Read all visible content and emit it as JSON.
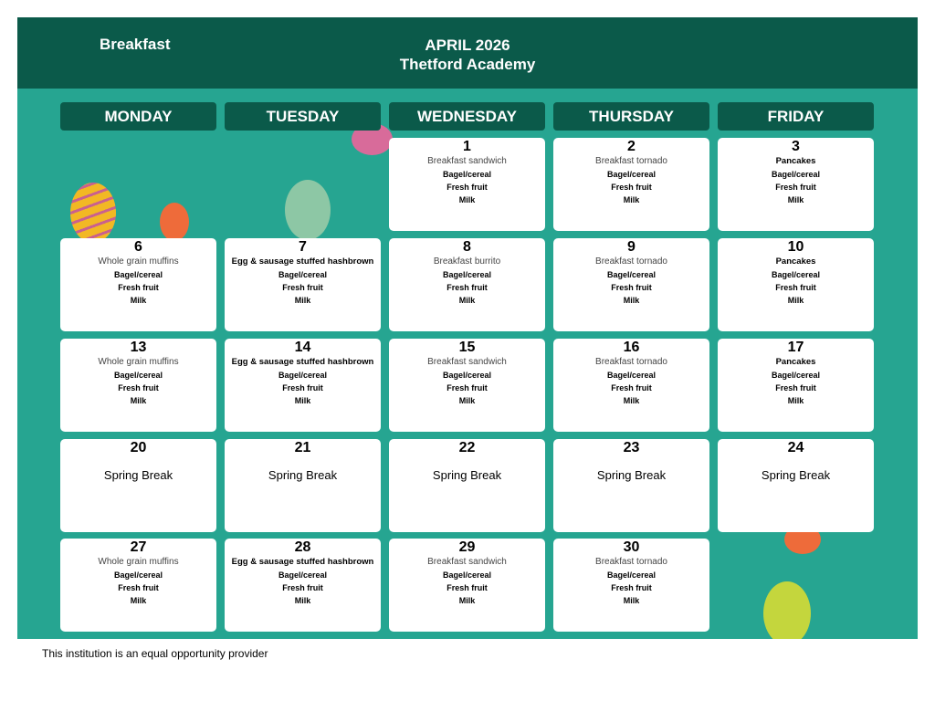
{
  "header": {
    "meal": "Breakfast",
    "month": "APRIL 2026",
    "school": "Thetford Academy"
  },
  "days": [
    "MONDAY",
    "TUESDAY",
    "WEDNESDAY",
    "THURSDAY",
    "FRIDAY"
  ],
  "colors": {
    "banner": "#0b5a4a",
    "background": "#26a591"
  },
  "weeks": [
    [
      null,
      null,
      {
        "date": "1",
        "main": "Breakfast sandwich",
        "items": [
          "Bagel/cereal",
          "Fresh fruit",
          "Milk"
        ]
      },
      {
        "date": "2",
        "main": "Breakfast tornado",
        "items": [
          "Bagel/cereal",
          "Fresh fruit",
          "Milk"
        ]
      },
      {
        "date": "3",
        "main": "Pancakes",
        "bold": true,
        "items": [
          "Bagel/cereal",
          "Fresh fruit",
          "Milk"
        ]
      }
    ],
    [
      {
        "date": "6",
        "main": "Whole grain muffins",
        "items": [
          "Bagel/cereal",
          "Fresh fruit",
          "Milk"
        ]
      },
      {
        "date": "7",
        "main": "Egg & sausage stuffed hashbrown",
        "bold": true,
        "items": [
          "Bagel/cereal",
          "Fresh fruit",
          "Milk"
        ]
      },
      {
        "date": "8",
        "main": "Breakfast burrito",
        "items": [
          "Bagel/cereal",
          "Fresh fruit",
          "Milk"
        ]
      },
      {
        "date": "9",
        "main": "Breakfast tornado",
        "items": [
          "Bagel/cereal",
          "Fresh fruit",
          "Milk"
        ]
      },
      {
        "date": "10",
        "main": "Pancakes",
        "bold": true,
        "items": [
          "Bagel/cereal",
          "Fresh fruit",
          "Milk"
        ]
      }
    ],
    [
      {
        "date": "13",
        "main": "Whole grain muffins",
        "items": [
          "Bagel/cereal",
          "Fresh fruit",
          "Milk"
        ]
      },
      {
        "date": "14",
        "main": "Egg & sausage stuffed hashbrown",
        "bold": true,
        "items": [
          "Bagel/cereal",
          "Fresh fruit",
          "Milk"
        ]
      },
      {
        "date": "15",
        "main": "Breakfast sandwich",
        "items": [
          "Bagel/cereal",
          "Fresh fruit",
          "Milk"
        ]
      },
      {
        "date": "16",
        "main": "Breakfast tornado",
        "items": [
          "Bagel/cereal",
          "Fresh fruit",
          "Milk"
        ]
      },
      {
        "date": "17",
        "main": "Pancakes",
        "bold": true,
        "items": [
          "Bagel/cereal",
          "Fresh fruit",
          "Milk"
        ]
      }
    ],
    [
      {
        "date": "20",
        "note": "Spring Break"
      },
      {
        "date": "21",
        "note": "Spring Break"
      },
      {
        "date": "22",
        "note": "Spring Break"
      },
      {
        "date": "23",
        "note": "Spring Break"
      },
      {
        "date": "24",
        "note": "Spring Break"
      }
    ],
    [
      {
        "date": "27",
        "main": "Whole grain muffins",
        "items": [
          "Bagel/cereal",
          "Fresh fruit",
          "Milk"
        ]
      },
      {
        "date": "28",
        "main": "Egg & sausage stuffed hashbrown",
        "bold": true,
        "items": [
          "Bagel/cereal",
          "Fresh fruit",
          "Milk"
        ]
      },
      {
        "date": "29",
        "main": "Breakfast sandwich",
        "items": [
          "Bagel/cereal",
          "Fresh fruit",
          "Milk"
        ]
      },
      {
        "date": "30",
        "main": "Breakfast tornado",
        "items": [
          "Bagel/cereal",
          "Fresh fruit",
          "Milk"
        ]
      },
      null
    ]
  ],
  "footer": "This institution is an equal opportunity provider"
}
